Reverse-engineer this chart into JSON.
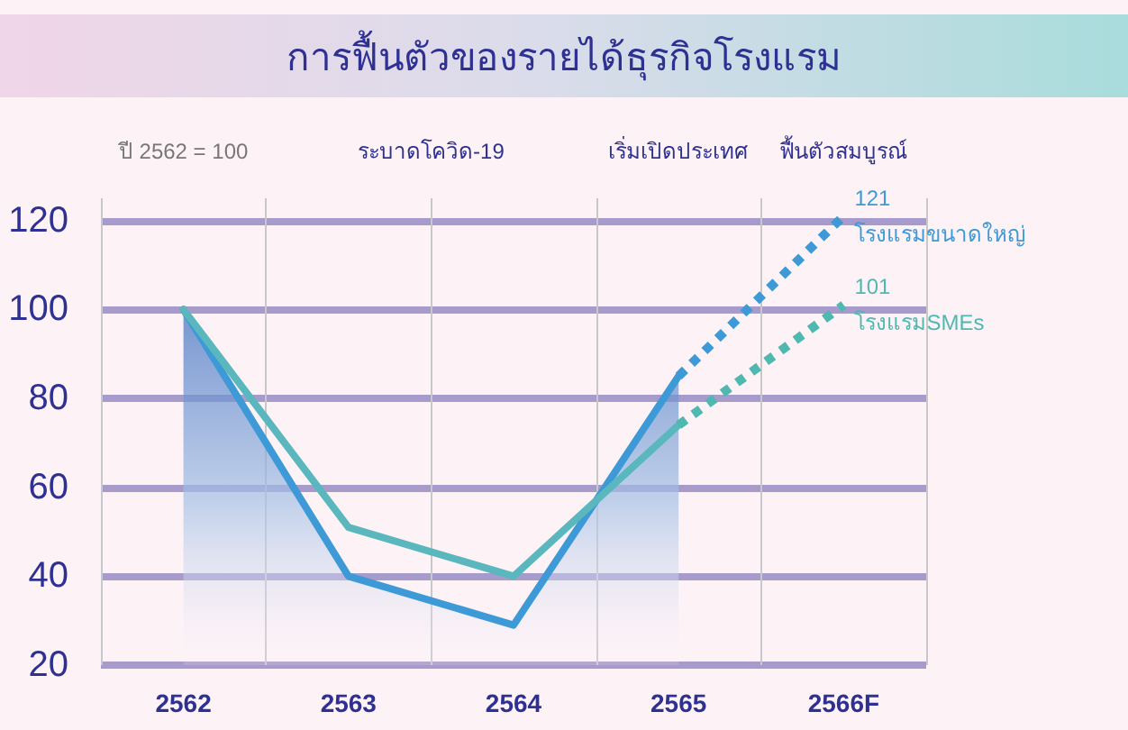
{
  "chart_data": {
    "type": "line",
    "title": "การฟื้นตัวของรายได้ธุรกิจโรงแรม",
    "annotations": [
      "ปี 2562 = 100",
      "ระบาดโควิด-19",
      "เริ่มเปิดประเทศ",
      "ฟื้นตัวสมบูรณ์"
    ],
    "categories": [
      "2562",
      "2563",
      "2564",
      "2565",
      "2566F"
    ],
    "series": [
      {
        "type": "area",
        "color": "#3d9ad6",
        "values": [
          100,
          40,
          29,
          85,
          null
        ]
      },
      {
        "color": "#5ab7bd",
        "values": [
          100,
          51,
          40,
          74,
          null
        ]
      },
      {
        "name": "โรงแรมขนาดใหญ่",
        "color": "#3d9ad6",
        "line_style": "dotted",
        "values": [
          null,
          null,
          null,
          85,
          121
        ],
        "value_labels": [
          null,
          null,
          null,
          null,
          "121"
        ]
      },
      {
        "name": "โรงแรมSMEs",
        "color": "#4fb8b0",
        "line_style": "dotted",
        "values": [
          null,
          null,
          null,
          74,
          101
        ],
        "value_labels": [
          null,
          null,
          null,
          null,
          "101"
        ]
      }
    ],
    "ylim": [
      20,
      125
    ],
    "yticks": [
      20,
      40,
      60,
      80,
      100,
      120
    ],
    "grid": true,
    "legend": false,
    "marker": "none"
  }
}
